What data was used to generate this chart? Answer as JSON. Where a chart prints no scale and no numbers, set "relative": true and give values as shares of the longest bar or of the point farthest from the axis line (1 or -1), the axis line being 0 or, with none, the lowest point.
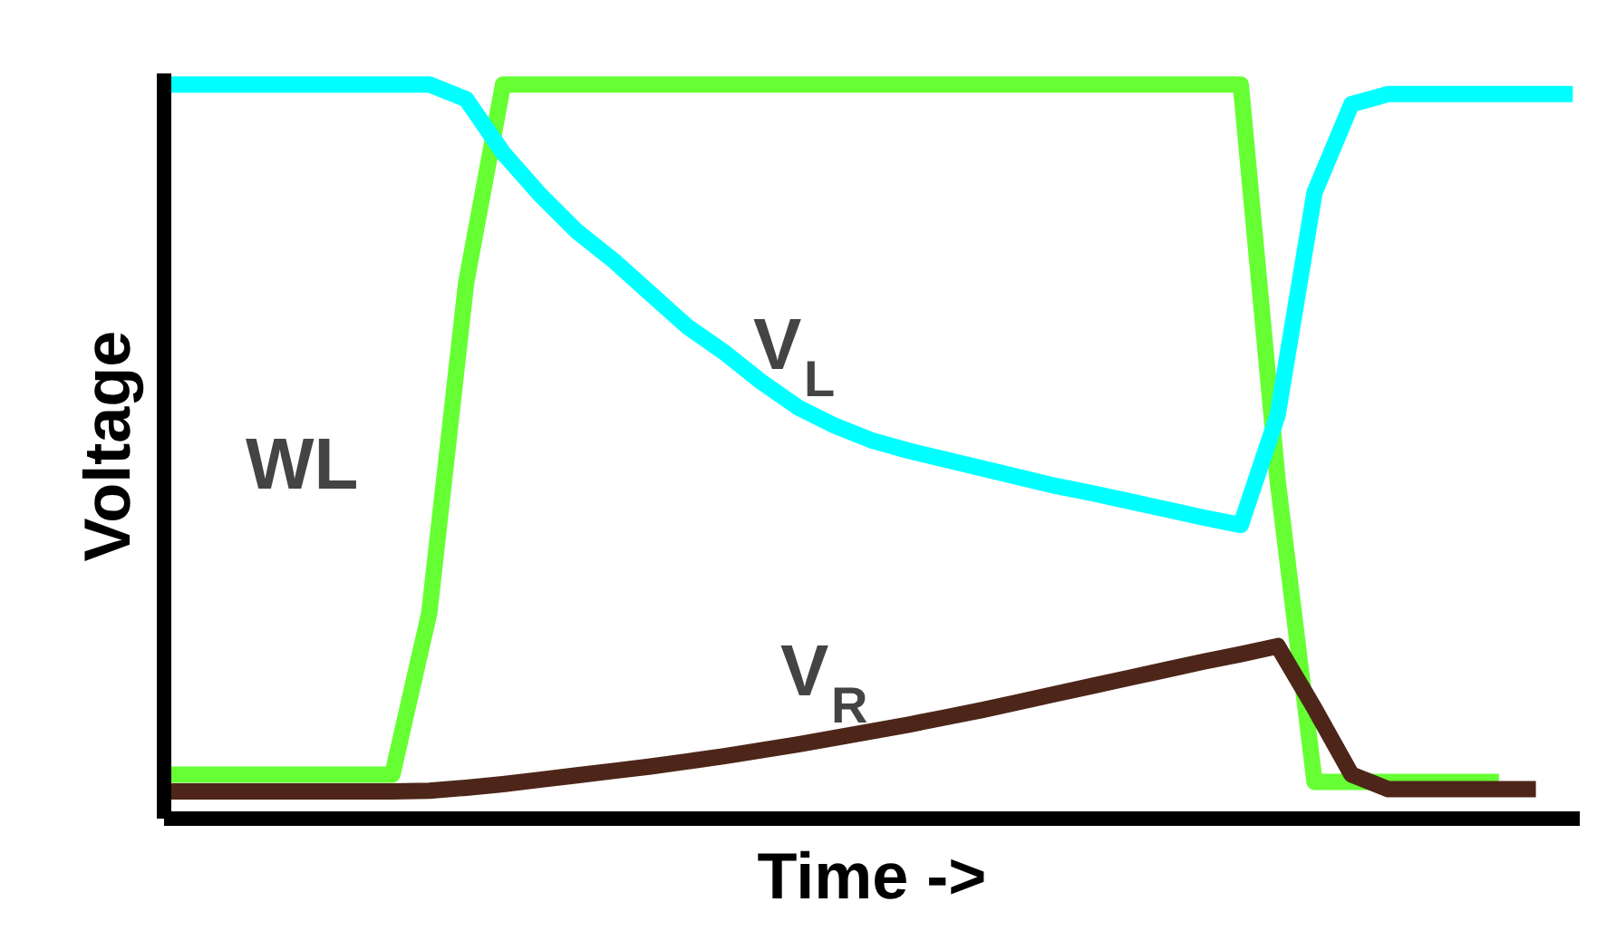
{
  "chart_data": {
    "type": "line",
    "relative": true,
    "xlabel": "Time ->",
    "ylabel": "Voltage",
    "grid": false,
    "marker": "none",
    "line_style": "solid",
    "tick_labels": false,
    "categories": [
      null,
      null,
      null,
      null,
      null,
      null,
      null,
      null,
      null,
      null,
      null,
      null,
      null,
      null,
      null,
      null,
      null,
      null,
      null,
      null,
      null,
      null,
      null,
      null,
      null,
      null,
      null,
      null,
      null,
      null,
      null,
      null,
      null,
      null,
      null,
      null,
      null,
      null,
      null
    ],
    "series": [
      {
        "name": "WL",
        "color": "#66ff33",
        "values": [
          0.06,
          0.06,
          0.06,
          0.06,
          0.06,
          0.06,
          0.06,
          0.28,
          0.73,
          1.0,
          1.0,
          1.0,
          1.0,
          1.0,
          1.0,
          1.0,
          1.0,
          1.0,
          1.0,
          1.0,
          1.0,
          1.0,
          1.0,
          1.0,
          1.0,
          1.0,
          1.0,
          1.0,
          1.0,
          1.0,
          0.46,
          0.05,
          0.05,
          0.05,
          0.05,
          0.05,
          0.05,
          null,
          null
        ]
      },
      {
        "name": "V$_{L}$",
        "color": "#00ffff",
        "values": [
          1.0,
          1.0,
          1.0,
          1.0,
          1.0,
          1.0,
          1.0,
          1.0,
          0.98,
          0.907,
          0.85,
          0.8,
          0.76,
          0.715,
          0.67,
          0.635,
          0.595,
          0.56,
          0.535,
          0.515,
          0.501,
          0.489,
          0.477,
          0.465,
          0.453,
          0.443,
          0.432,
          0.421,
          0.41,
          0.4,
          0.55,
          0.853,
          0.973,
          0.987,
          0.987,
          0.987,
          0.987,
          0.987,
          0.987
        ]
      },
      {
        "name": "V$_{R}$",
        "color": "#4d2619",
        "values": [
          0.037,
          0.037,
          0.037,
          0.037,
          0.037,
          0.037,
          0.037,
          0.038,
          0.042,
          0.047,
          0.053,
          0.059,
          0.065,
          0.071,
          0.078,
          0.085,
          0.093,
          0.101,
          0.11,
          0.119,
          0.128,
          0.138,
          0.148,
          0.159,
          0.17,
          0.181,
          0.192,
          0.203,
          0.214,
          0.224,
          0.235,
          0.15,
          0.06,
          0.04,
          0.04,
          0.04,
          0.04,
          0.04,
          null
        ]
      }
    ]
  }
}
